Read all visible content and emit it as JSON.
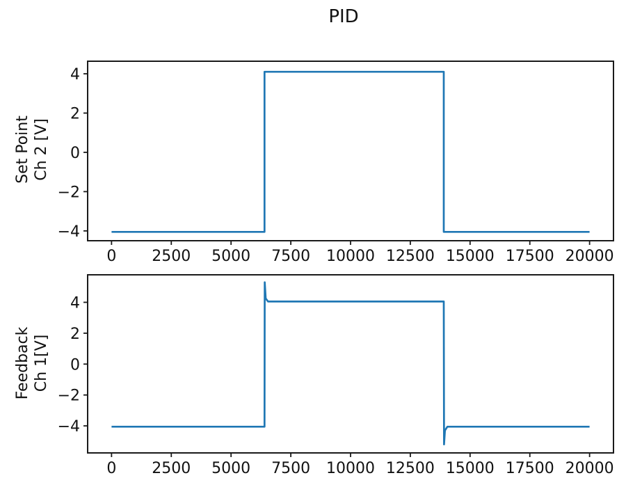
{
  "title": "PID",
  "colors": {
    "line": "#1f77b4",
    "axis": "#1a1a1a",
    "text": "#111111",
    "background": "#ffffff"
  },
  "chart_data": [
    {
      "id": "set-point",
      "type": "line",
      "ylabel": "Set Point\nCh 2 [V]",
      "ylabel_lines": [
        "Set Point",
        "Ch 2 [V]"
      ],
      "xlim": [
        -1000,
        21000
      ],
      "ylim": [
        -4.5,
        4.64
      ],
      "xticks": [
        0,
        2500,
        5000,
        7500,
        10000,
        12500,
        15000,
        17500,
        20000
      ],
      "yticks": [
        4,
        2,
        0,
        -2,
        -4
      ],
      "grid": false,
      "legend": null,
      "series": [
        {
          "name": "Set Point Ch 2 [V]",
          "color": "#1f77b4",
          "points": [
            [
              0,
              -4.05
            ],
            [
              6400,
              -4.05
            ],
            [
              6400,
              4.1
            ],
            [
              13900,
              4.1
            ],
            [
              13900,
              -4.05
            ],
            [
              20000,
              -4.05
            ]
          ]
        }
      ]
    },
    {
      "id": "feedback",
      "type": "line",
      "ylabel": "Feedback\nCh 1[V]",
      "ylabel_lines": [
        "Feedback",
        "Ch 1[V]"
      ],
      "xlim": [
        -1000,
        21000
      ],
      "ylim": [
        -5.75,
        5.78
      ],
      "xticks": [
        0,
        2500,
        5000,
        7500,
        10000,
        12500,
        15000,
        17500,
        20000
      ],
      "yticks": [
        4,
        2,
        0,
        -2,
        -4
      ],
      "grid": false,
      "legend": null,
      "series": [
        {
          "name": "Feedback Ch 1[V]",
          "color": "#1f77b4",
          "points": [
            [
              0,
              -4.05
            ],
            [
              6400,
              -4.05
            ],
            [
              6410,
              5.3
            ],
            [
              6450,
              4.25
            ],
            [
              6550,
              4.05
            ],
            [
              13900,
              4.05
            ],
            [
              13910,
              -5.2
            ],
            [
              13950,
              -4.3
            ],
            [
              14050,
              -4.05
            ],
            [
              20000,
              -4.05
            ]
          ]
        }
      ]
    }
  ]
}
